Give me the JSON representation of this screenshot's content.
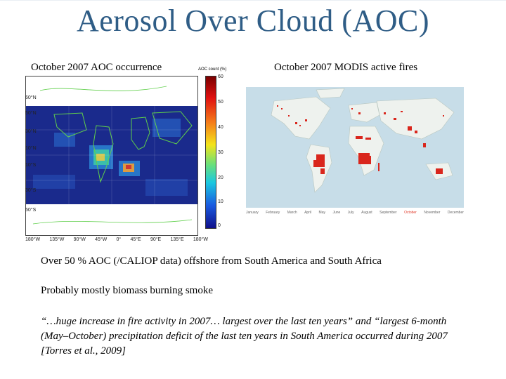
{
  "slide": {
    "title": "Aerosol Over Cloud (AOC)",
    "bullets": [
      "Over 50 % AOC (/CALIOP data) offshore from South America and South Africa",
      "Probably mostly biomass burning smoke"
    ],
    "quote": "“…huge increase in fire activity in 2007… largest over the last ten years” and “largest 6-month (May–October) precipitation deficit of the last ten years in South America occurred during 2007 [Torres et al., 2009]"
  },
  "left_figure": {
    "caption": "October 2007 AOC occurrence",
    "colorbar_title": "AOC count (%)",
    "colorbar_ticks": [
      "60",
      "50",
      "40",
      "30",
      "20",
      "10",
      "0"
    ],
    "lat_labels": [
      "60°N",
      "50°N",
      "30°N",
      "10°N",
      "10°S",
      "30°S",
      "50°S"
    ],
    "lon_labels": [
      "180°W",
      "135°W",
      "90°W",
      "45°W",
      "0°",
      "45°E",
      "90°E",
      "135°E",
      "180°W"
    ]
  },
  "right_figure": {
    "caption": "October 2007 MODIS active fires",
    "months": [
      "January",
      "February",
      "March",
      "April",
      "May",
      "June",
      "July",
      "August",
      "September",
      "October",
      "November",
      "December"
    ],
    "active_month": "October",
    "active_month_color": "#e03a2a"
  },
  "colors": {
    "title": "#2f5d86",
    "ocean_light": "#c7dde8",
    "fire": "#d9261c"
  }
}
